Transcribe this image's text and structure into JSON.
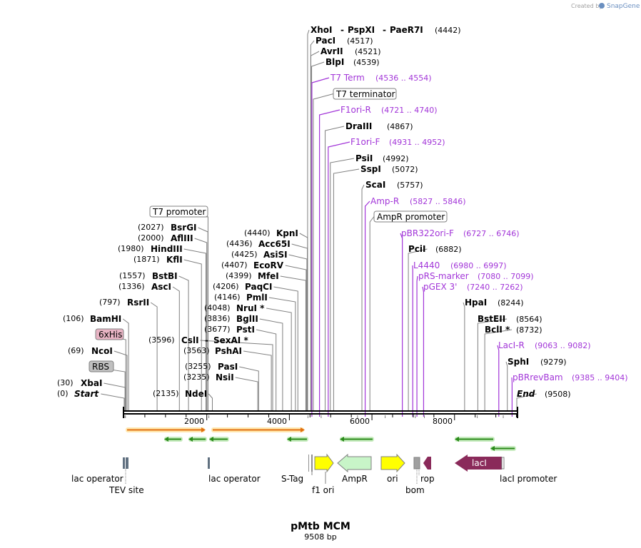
{
  "credit": {
    "prefix": "Created by",
    "brand": "SnapGene"
  },
  "plasmid": {
    "name": "pMtb MCM",
    "size": "9508 bp",
    "length": 9508
  },
  "ruler": {
    "ticks": [
      "2000",
      "4000",
      "6000",
      "8000"
    ],
    "tick_values": [
      2000,
      4000,
      6000,
      8000
    ]
  },
  "enzymes": [
    {
      "name": "XhoI",
      "pos": "(4442)",
      "site": 4442,
      "extra": [
        "PspXI",
        "PaeR7I"
      ]
    },
    {
      "name": "PacI",
      "pos": "(4517)",
      "site": 4517
    },
    {
      "name": "AvrII",
      "pos": "(4521)",
      "site": 4521
    },
    {
      "name": "BlpI",
      "pos": "(4539)",
      "site": 4539
    },
    {
      "name": "DraIII",
      "pos": "(4867)",
      "site": 4867
    },
    {
      "name": "PsiI",
      "pos": "(4992)",
      "site": 4992
    },
    {
      "name": "SspI",
      "pos": "(5072)",
      "site": 5072
    },
    {
      "name": "ScaI",
      "pos": "(5757)",
      "site": 5757
    },
    {
      "name": "PciI",
      "pos": "(6882)",
      "site": 6882
    },
    {
      "name": "HpaI",
      "pos": "(8244)",
      "site": 8244
    },
    {
      "name": "BstEII",
      "pos": "(8564)",
      "site": 8564
    },
    {
      "name": "BclI *",
      "pos": "(8732)",
      "site": 8732
    },
    {
      "name": "SphI",
      "pos": "(9279)",
      "site": 9279
    },
    {
      "name": "End",
      "pos": "(9508)",
      "site": 9508
    },
    {
      "name": "KpnI",
      "pos": "(4440)",
      "site": 4440
    },
    {
      "name": "Acc65I",
      "pos": "(4436)",
      "site": 4436
    },
    {
      "name": "AsiSI",
      "pos": "(4425)",
      "site": 4425
    },
    {
      "name": "EcoRV",
      "pos": "(4407)",
      "site": 4407
    },
    {
      "name": "MfeI",
      "pos": "(4399)",
      "site": 4399
    },
    {
      "name": "PaqCI",
      "pos": "(4206)",
      "site": 4206
    },
    {
      "name": "PmlI",
      "pos": "(4146)",
      "site": 4146
    },
    {
      "name": "NruI *",
      "pos": "(4048)",
      "site": 4048
    },
    {
      "name": "BglII",
      "pos": "(3836)",
      "site": 3836
    },
    {
      "name": "PstI",
      "pos": "(3677)",
      "site": 3677
    },
    {
      "name": "PshAI",
      "pos": "(3563)",
      "site": 3563
    },
    {
      "name": "PasI",
      "pos": "(3255)",
      "site": 3255
    },
    {
      "name": "NsiI",
      "pos": "(3235)",
      "site": 3235
    },
    {
      "name": "CslI",
      "pos": "(3596)",
      "site": 3596,
      "extra": [
        "SexAI *"
      ]
    },
    {
      "name": "NdeI",
      "pos": "(2135)",
      "site": 2135
    },
    {
      "name": "BsrGI",
      "pos": "(2027)",
      "site": 2027
    },
    {
      "name": "AflIII",
      "pos": "(2000)",
      "site": 2000
    },
    {
      "name": "HindIII",
      "pos": "(1980)",
      "site": 1980
    },
    {
      "name": "KflI",
      "pos": "(1871)",
      "site": 1871
    },
    {
      "name": "BstBI",
      "pos": "(1557)",
      "site": 1557
    },
    {
      "name": "AscI",
      "pos": "(1336)",
      "site": 1336
    },
    {
      "name": "RsrII",
      "pos": "(797)",
      "site": 797
    },
    {
      "name": "BamHI",
      "pos": "(106)",
      "site": 106
    },
    {
      "name": "NcoI",
      "pos": "(69)",
      "site": 69
    },
    {
      "name": "XbaI",
      "pos": "(30)",
      "site": 30
    },
    {
      "name": "Start",
      "pos": "(0)",
      "site": 0
    }
  ],
  "primers": [
    {
      "name": "T7 Term",
      "range": "(4536 .. 4554)",
      "site": 4545
    },
    {
      "name": "F1ori-R",
      "range": "(4721 .. 4740)",
      "site": 4730
    },
    {
      "name": "F1ori-F",
      "range": "(4931 .. 4952)",
      "site": 4941
    },
    {
      "name": "Amp-R",
      "range": "(5827 .. 5846)",
      "site": 5836
    },
    {
      "name": "pBR322ori-F",
      "range": "(6727 .. 6746)",
      "site": 6736
    },
    {
      "name": "L4440",
      "range": "(6980 .. 6997)",
      "site": 6988
    },
    {
      "name": "pRS-marker",
      "range": "(7080 .. 7099)",
      "site": 7089
    },
    {
      "name": "pGEX 3'",
      "range": "(7240 .. 7262)",
      "site": 7251
    },
    {
      "name": "LacI-R",
      "range": "(9063 .. 9082)",
      "site": 9072
    },
    {
      "name": "pBRrevBam",
      "range": "(9385 .. 9404)",
      "site": 9394
    }
  ],
  "boxed_features": [
    {
      "name": "T7 terminator",
      "site": 4580
    },
    {
      "name": "AmpR promoter",
      "site": 5950
    },
    {
      "name": "T7 promoter",
      "site": 2030
    },
    {
      "name": "6xHis",
      "site": 40
    },
    {
      "name": "RBS",
      "site": 20
    }
  ],
  "features": [
    {
      "name": "lac operator",
      "site": 0
    },
    {
      "name": "TEV site",
      "site": 30
    },
    {
      "name": "lac operator",
      "site": 2050
    },
    {
      "name": "S-Tag",
      "site": 4450
    },
    {
      "name": "f1 ori",
      "site": 4770
    },
    {
      "name": "AmpR",
      "site": 5650
    },
    {
      "name": "ori",
      "site": 6320
    },
    {
      "name": "bom",
      "site": 7050
    },
    {
      "name": "rop",
      "site": 7270
    },
    {
      "name": "lacI",
      "site": 8550
    },
    {
      "name": "lacI promoter",
      "site": 9180
    }
  ],
  "colors": {
    "primer": "#a235d8",
    "orf_fill": "#f5b43c",
    "green_arrow": "#2a8a1a",
    "green_bg": "#c8ecc0",
    "yellow": "#ffff00",
    "ampr_fill": "#c8f5c8",
    "laci_fill": "#8a2a5a",
    "his_fill": "#e8b4c4",
    "rbs_fill": "#c0c0c0",
    "lac_op_fill": "#607080"
  }
}
